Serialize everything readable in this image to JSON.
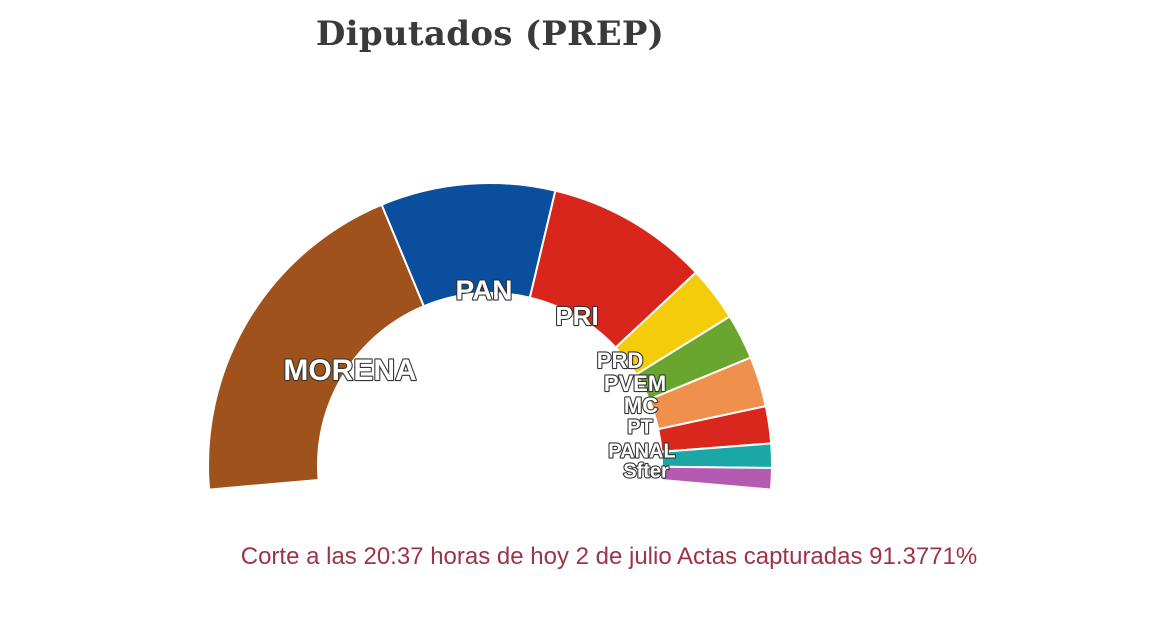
{
  "chart_data": {
    "type": "pie",
    "title": "Diputados (PREP)",
    "note": "Corte a las 20:37 horas de hoy 2 de julio Actas capturadas 91.3771%",
    "categories": [
      "MORENA",
      "PAN",
      "PRI",
      "PRD",
      "PVEM",
      "MC",
      "PT",
      "PANAL",
      "Sfter"
    ],
    "values": [
      37.8,
      18.8,
      17.5,
      5.9,
      4.9,
      5.4,
      4.0,
      2.6,
      2.3
    ],
    "series": [
      {
        "values": [
          37.8,
          18.8,
          17.5,
          5.9,
          4.9,
          5.4,
          4.0,
          2.6,
          2.3
        ],
        "colors": [
          "#a0521c",
          "#0a4f9e",
          "#d9261c",
          "#f4cc0a",
          "#6aa52f",
          "#ef914c",
          "#d9271e",
          "#1aa7a6",
          "#b45ab0"
        ]
      }
    ],
    "shape": "semicircle-donut"
  }
}
